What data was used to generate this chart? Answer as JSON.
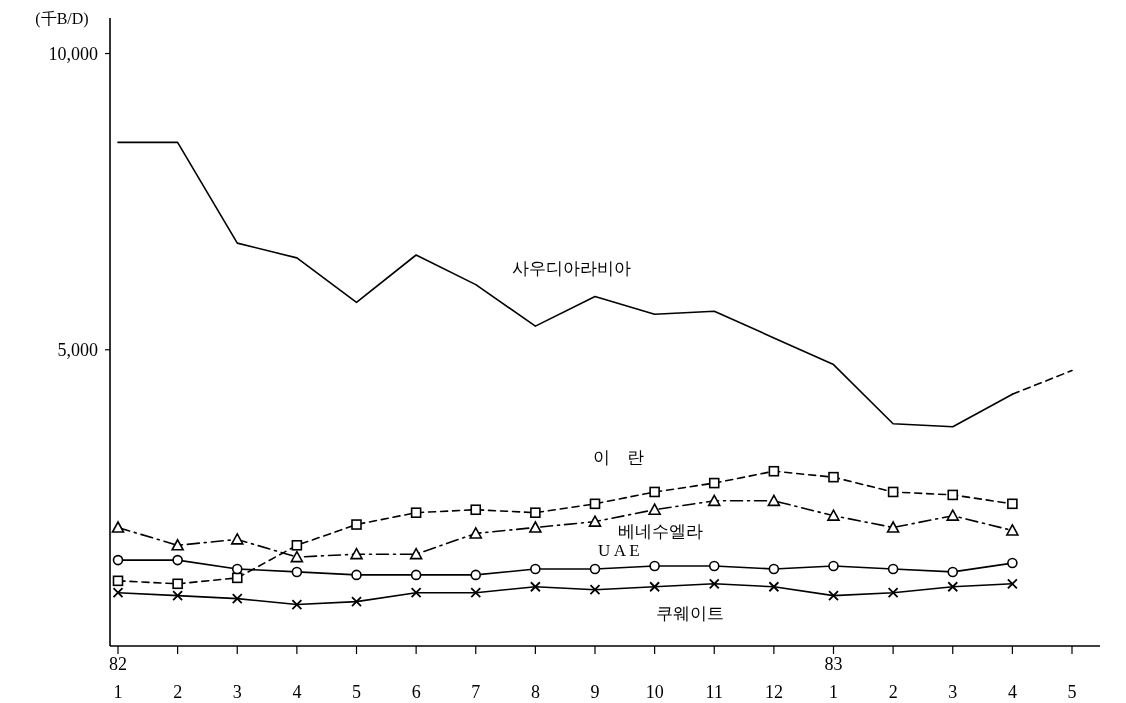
{
  "chart_data": {
    "type": "line",
    "ylabel": "(千B/D)",
    "categories": [
      "82\n1",
      "2",
      "3",
      "4",
      "5",
      "6",
      "7",
      "8",
      "9",
      "10",
      "11",
      "12",
      "83\n1",
      "2",
      "3",
      "4",
      "5"
    ],
    "ylim": [
      0,
      10600
    ],
    "yticks": [
      {
        "value": 5000,
        "label": "5,000"
      },
      {
        "value": 10000,
        "label": "10,000"
      }
    ],
    "series": [
      {
        "name": "사우디아라비아",
        "color": "#000000",
        "marker": "none",
        "line_style": "solid",
        "values": [
          8500,
          8500,
          6800,
          6550,
          5800,
          6600,
          6100,
          5400,
          5900,
          5600,
          5650,
          5200,
          4750,
          3750,
          3700,
          4250,
          null
        ]
      },
      {
        "color": "#000000",
        "marker": "none",
        "line_style": "dashed",
        "values": [
          null,
          null,
          null,
          null,
          null,
          null,
          null,
          null,
          null,
          null,
          null,
          null,
          null,
          null,
          null,
          4250,
          4650
        ]
      },
      {
        "name": "이    란",
        "color": "#000000",
        "marker": "square",
        "line_style": "dashed",
        "values": [
          1100,
          1050,
          1150,
          1700,
          2050,
          2250,
          2300,
          2250,
          2400,
          2600,
          2750,
          2950,
          2850,
          2600,
          2550,
          2400,
          null
        ]
      },
      {
        "name": "베네수엘라",
        "color": "#000000",
        "marker": "triangle",
        "line_style": "dashdot",
        "values": [
          2000,
          1700,
          1800,
          1500,
          1550,
          1550,
          1900,
          2000,
          2100,
          2300,
          2450,
          2450,
          2200,
          2000,
          2200,
          1950,
          null
        ]
      },
      {
        "name": "U A E",
        "color": "#000000",
        "marker": "circle",
        "line_style": "solid",
        "values": [
          1450,
          1450,
          1300,
          1250,
          1200,
          1200,
          1200,
          1300,
          1300,
          1350,
          1350,
          1300,
          1350,
          1300,
          1250,
          1400,
          null
        ]
      },
      {
        "name": "쿠웨이트",
        "color": "#000000",
        "marker": "cross",
        "line_style": "solid",
        "values": [
          900,
          850,
          800,
          700,
          750,
          900,
          900,
          1000,
          950,
          1000,
          1050,
          1000,
          850,
          900,
          1000,
          1050,
          null
        ]
      }
    ]
  }
}
